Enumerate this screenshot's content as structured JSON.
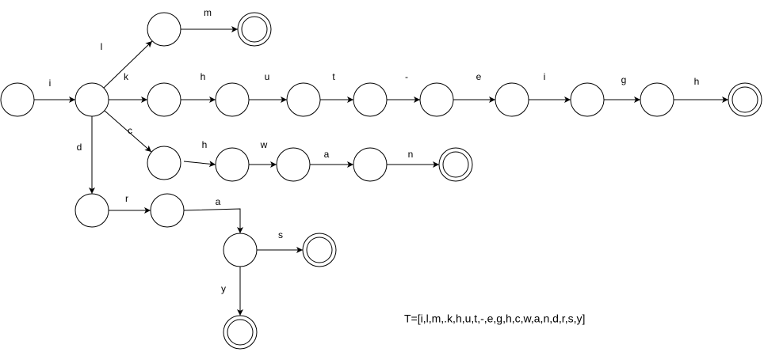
{
  "edges": [
    "i",
    "l",
    "m",
    "k",
    "h",
    "u",
    "t",
    "-",
    "e",
    "i",
    "g",
    "h",
    "c",
    "h",
    "w",
    "a",
    "n",
    "d",
    "r",
    "a",
    "s",
    "y"
  ],
  "text": "T=[i,l,m,.k,h,u,t,-,e,g,h,c,w,a,n,d,r,s,y]"
}
